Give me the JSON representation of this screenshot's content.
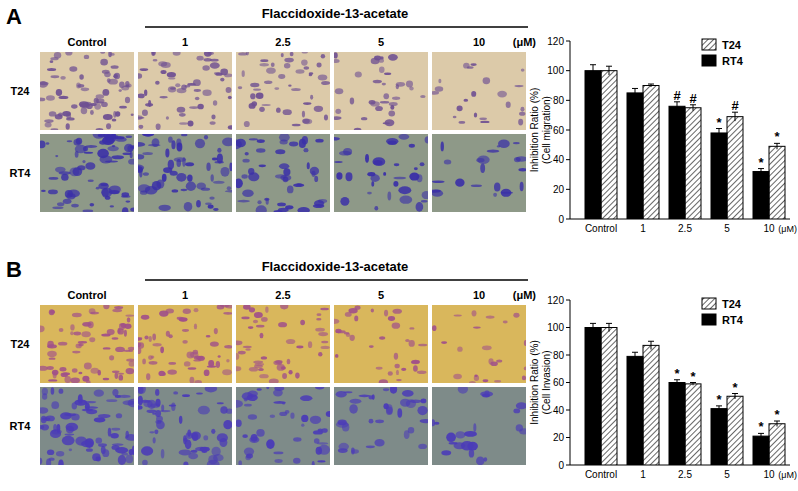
{
  "panels": [
    {
      "label": "A",
      "compound": "Flaccidoxide-13-acetate",
      "unit": "(μM)",
      "columns": [
        "Control",
        "1",
        "2.5",
        "5",
        "10"
      ],
      "rows": [
        "T24",
        "RT4"
      ]
    },
    {
      "label": "B",
      "compound": "Flaccidoxide-13-acetate",
      "unit": "(μM)",
      "columns": [
        "Control",
        "1",
        "2.5",
        "5",
        "10"
      ],
      "rows": [
        "T24",
        "RT4"
      ]
    }
  ],
  "chart_data": [
    {
      "type": "bar",
      "y_label": "Inhibition Ratio (%)",
      "y_sublabel": "(Cell migration)",
      "categories": [
        "Control",
        "1",
        "2.5",
        "5",
        "10"
      ],
      "x_unit": "(μM)",
      "ylim": [
        0,
        120
      ],
      "yticks": [
        0,
        20,
        40,
        60,
        80,
        100,
        120
      ],
      "legend": "top-right",
      "series": [
        {
          "name": "T24",
          "color": "#ffffff",
          "marker": "hatch",
          "values": [
            100,
            90,
            75,
            69,
            49
          ],
          "errors": [
            3,
            1,
            2,
            3,
            2
          ],
          "significance": [
            null,
            null,
            "#",
            "#",
            "*"
          ]
        },
        {
          "name": "RT4",
          "color": "#000000",
          "values": [
            100,
            85,
            76,
            58,
            32
          ],
          "errors": [
            4,
            3,
            3,
            3,
            2
          ],
          "significance": [
            null,
            null,
            "#",
            "*",
            "*"
          ]
        }
      ]
    },
    {
      "type": "bar",
      "y_label": "Inhibition Ratio (%)",
      "y_sublabel": "(Cell Invasion)",
      "categories": [
        "Control",
        "1",
        "2.5",
        "5",
        "10"
      ],
      "x_unit": "(μM)",
      "ylim": [
        0,
        120
      ],
      "yticks": [
        0,
        20,
        40,
        60,
        80,
        100,
        120
      ],
      "legend": "top-right",
      "series": [
        {
          "name": "T24",
          "color": "#ffffff",
          "marker": "hatch",
          "values": [
            100,
            87,
            59,
            50,
            30
          ],
          "errors": [
            3,
            3,
            1,
            2,
            2
          ],
          "significance": [
            null,
            null,
            "*",
            "*",
            "*"
          ]
        },
        {
          "name": "RT4",
          "color": "#000000",
          "values": [
            100,
            79,
            60,
            41,
            21
          ],
          "errors": [
            3,
            3,
            2,
            2,
            2
          ],
          "significance": [
            null,
            null,
            "*",
            "*",
            "*"
          ]
        }
      ]
    }
  ]
}
